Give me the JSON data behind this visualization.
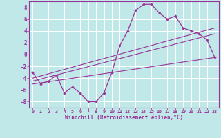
{
  "xlabel": "Windchill (Refroidissement éolien,°C)",
  "background_color": "#c0e8e8",
  "grid_color": "#ffffff",
  "line_color": "#993399",
  "spine_color": "#993399",
  "xlim": [
    -0.5,
    23.5
  ],
  "ylim": [
    -9,
    9
  ],
  "yticks": [
    -8,
    -6,
    -4,
    -2,
    0,
    2,
    4,
    6,
    8
  ],
  "xticks": [
    0,
    1,
    2,
    3,
    4,
    5,
    6,
    7,
    8,
    9,
    10,
    11,
    12,
    13,
    14,
    15,
    16,
    17,
    18,
    19,
    20,
    21,
    22,
    23
  ],
  "curve_x": [
    0,
    1,
    2,
    3,
    4,
    5,
    6,
    7,
    8,
    9,
    10,
    11,
    12,
    13,
    14,
    15,
    16,
    17,
    18,
    19,
    20,
    21,
    22,
    23
  ],
  "curve_y": [
    -3,
    -5,
    -4.5,
    -3.5,
    -6.5,
    -5.5,
    -6.5,
    -8,
    -8,
    -6.5,
    -3,
    1.5,
    4,
    7.5,
    8.5,
    8.5,
    7,
    6,
    6.5,
    4.5,
    4,
    3.5,
    2.5,
    -0.5
  ],
  "line1_x": [
    0,
    23
  ],
  "line1_y": [
    -5.0,
    -0.5
  ],
  "line2_x": [
    0,
    23
  ],
  "line2_y": [
    -4.5,
    3.5
  ],
  "line3_x": [
    0,
    23
  ],
  "line3_y": [
    -4.0,
    4.5
  ]
}
